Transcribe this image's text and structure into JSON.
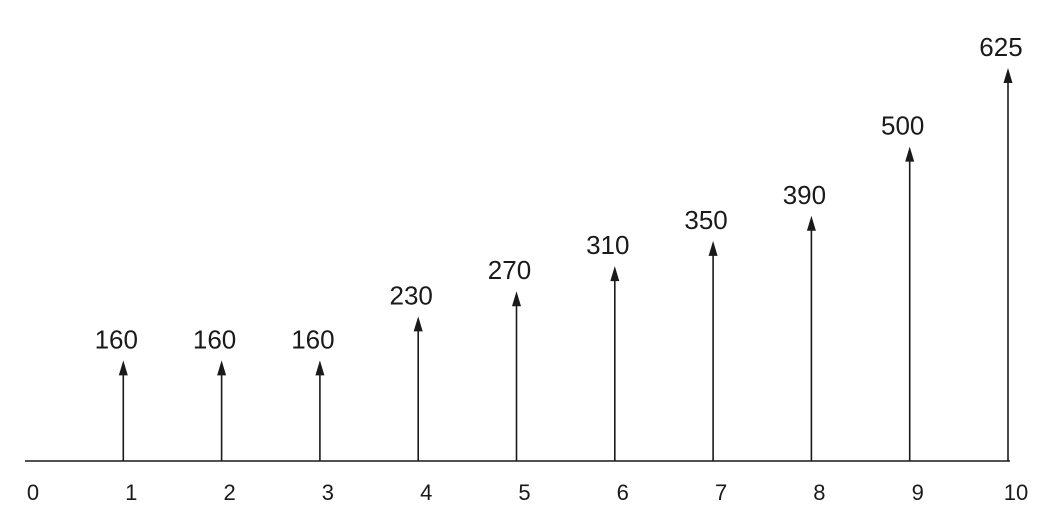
{
  "chart_data": {
    "type": "bar",
    "style": "arrow-stem",
    "title": "",
    "xlabel": "",
    "ylabel": "",
    "x_ticks": [
      "0",
      "1",
      "2",
      "3",
      "4",
      "5",
      "6",
      "7",
      "8",
      "9",
      "10"
    ],
    "x": [
      1,
      2,
      3,
      4,
      5,
      6,
      7,
      8,
      9,
      10
    ],
    "values": [
      160,
      160,
      160,
      230,
      270,
      310,
      350,
      390,
      500,
      625
    ],
    "xlim": [
      0,
      10
    ],
    "ylim": [
      0,
      625
    ],
    "grid": false,
    "legend": null,
    "color": "#1a1a1a"
  }
}
